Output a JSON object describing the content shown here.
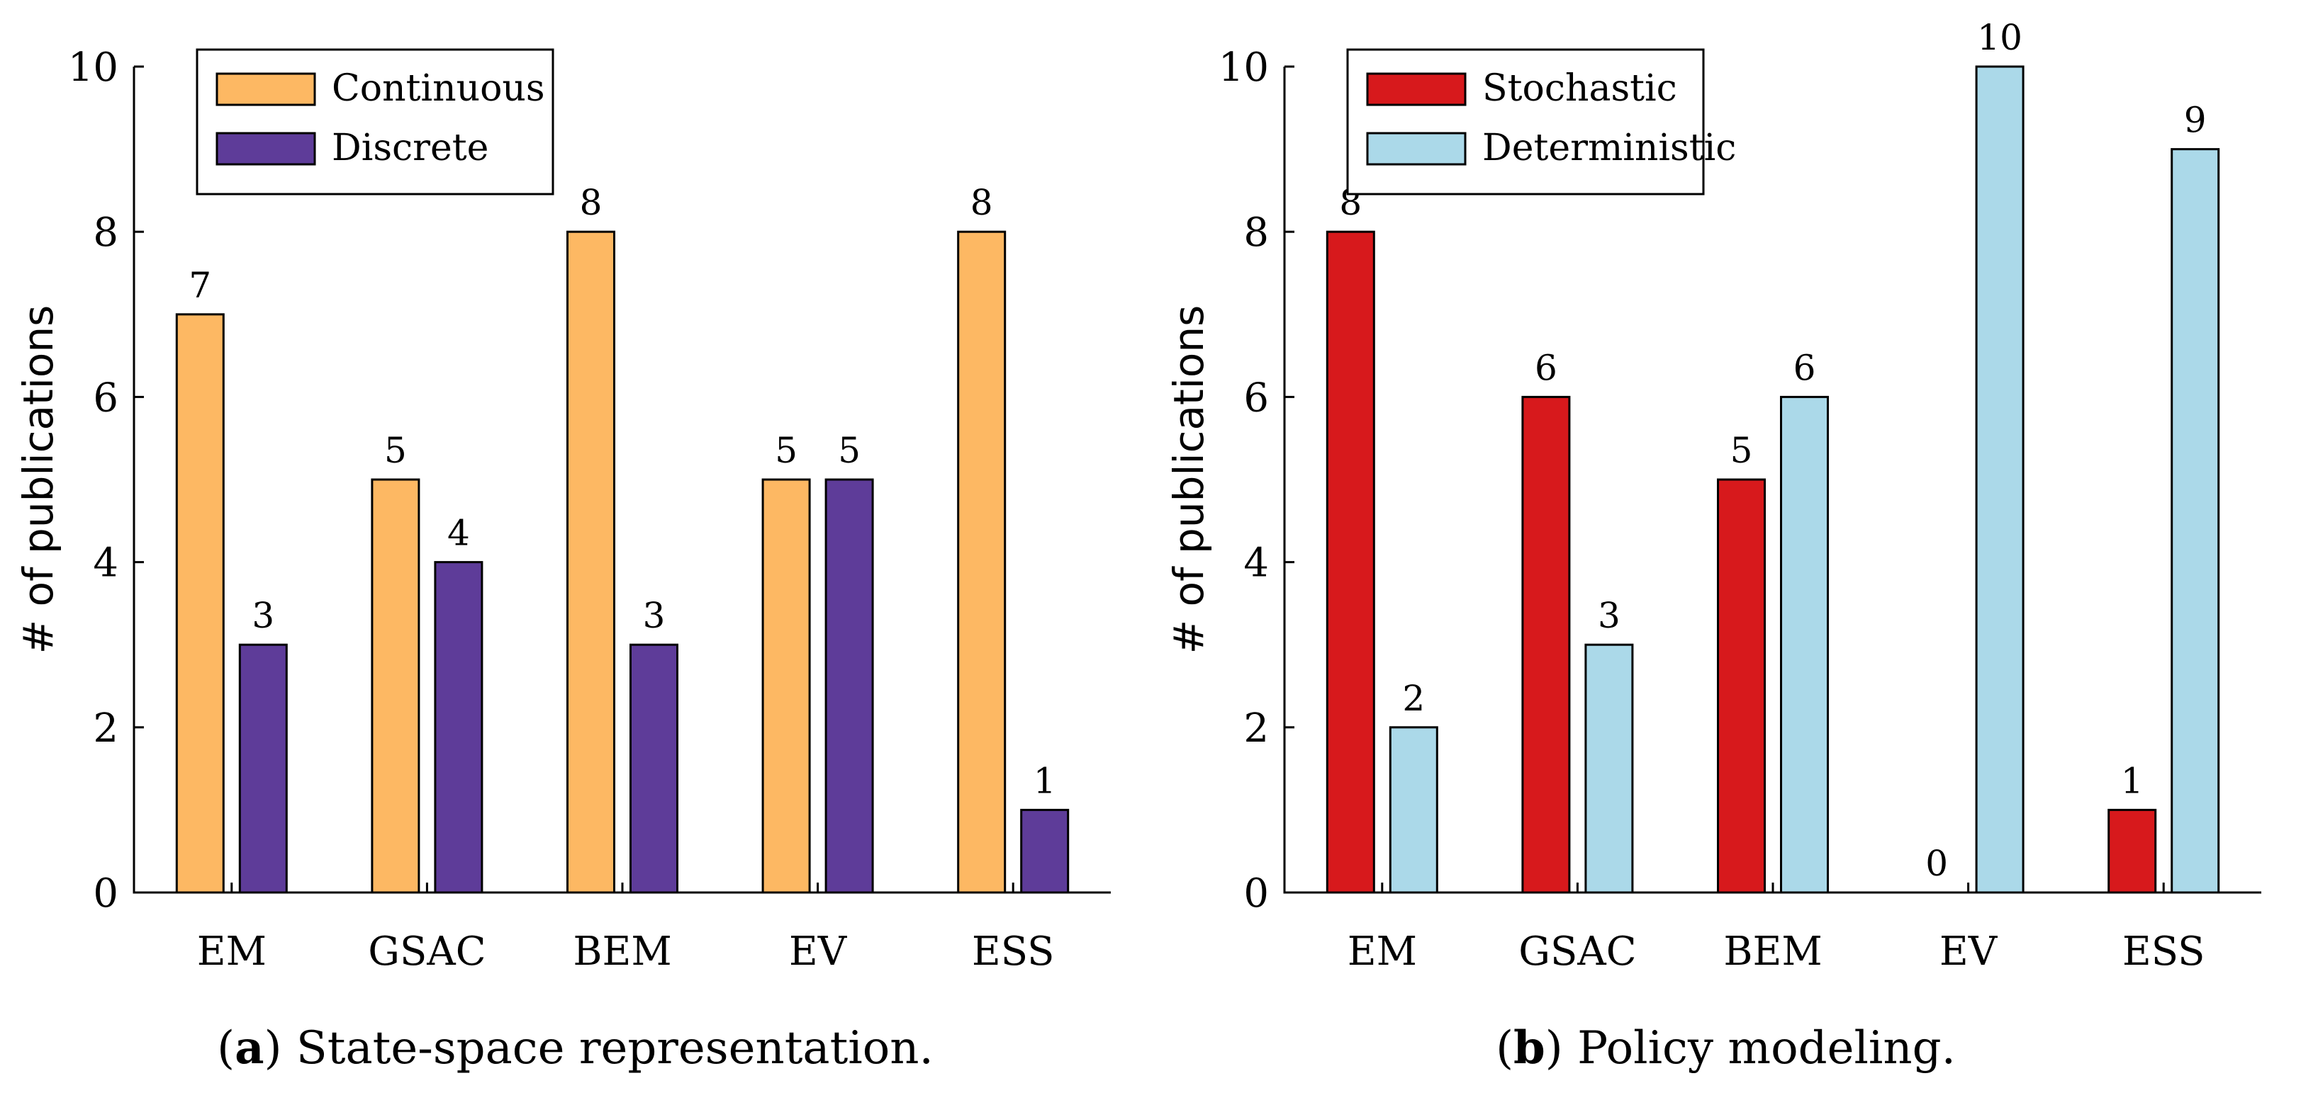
{
  "chart_data": [
    {
      "type": "bar",
      "caption_letter": "a",
      "caption": "State-space representation.",
      "categories": [
        "EM",
        "GSAC",
        "BEM",
        "EV",
        "ESS"
      ],
      "series": [
        {
          "name": "Continuous",
          "color": "#fdb863",
          "values": [
            7,
            5,
            8,
            5,
            8
          ]
        },
        {
          "name": "Discrete",
          "color": "#5e3c99",
          "values": [
            3,
            4,
            3,
            5,
            1
          ]
        }
      ],
      "xlabel": "",
      "ylabel": "# of publications",
      "ylim": [
        0,
        10
      ],
      "yticks": [
        0,
        2,
        4,
        6,
        8,
        10
      ],
      "legend_position": "top-left",
      "grid": false,
      "data_labels": true
    },
    {
      "type": "bar",
      "caption_letter": "b",
      "caption": "Policy modeling.",
      "categories": [
        "EM",
        "GSAC",
        "BEM",
        "EV",
        "ESS"
      ],
      "series": [
        {
          "name": "Stochastic",
          "color": "#d7191c",
          "values": [
            8,
            6,
            5,
            0,
            1
          ]
        },
        {
          "name": "Deterministic",
          "color": "#abd9e9",
          "values": [
            2,
            3,
            6,
            10,
            9
          ]
        }
      ],
      "xlabel": "",
      "ylabel": "# of publications",
      "ylim": [
        0,
        10
      ],
      "yticks": [
        0,
        2,
        4,
        6,
        8,
        10
      ],
      "legend_position": "top-left",
      "grid": false,
      "data_labels": true
    }
  ]
}
